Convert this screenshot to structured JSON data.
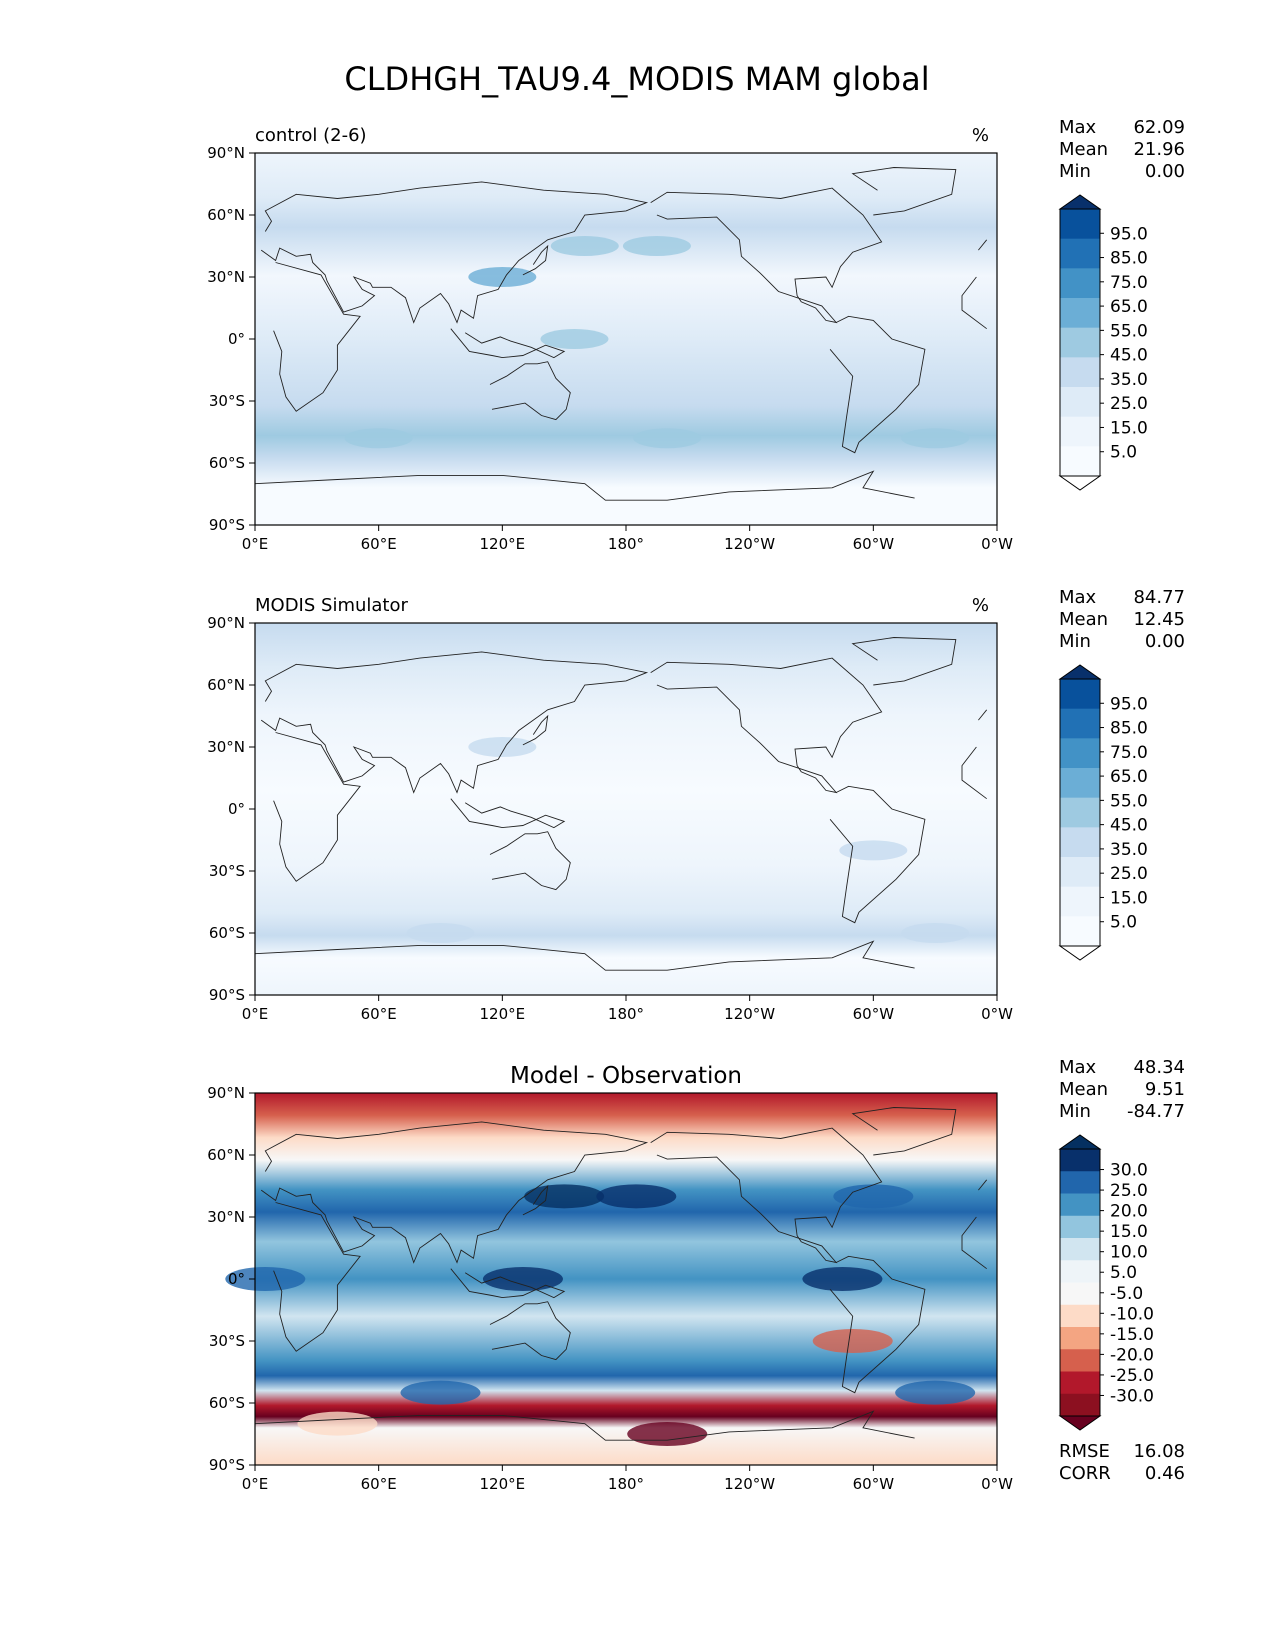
{
  "figure": {
    "title": "CLDHGH_TAU9.4_MODIS MAM global"
  },
  "axes": {
    "lat_ticks": [
      "90°N",
      "60°N",
      "30°N",
      "0°",
      "30°S",
      "60°S",
      "90°S"
    ],
    "lon_ticks": [
      "0°E",
      "60°E",
      "120°E",
      "180°",
      "120°W",
      "60°W",
      "0°W"
    ]
  },
  "panels": [
    {
      "id": "control",
      "title_left": "control (2-6)",
      "title_center": "",
      "units": "%",
      "stats": [
        {
          "label": "Max",
          "value": "62.09"
        },
        {
          "label": "Mean",
          "value": "21.96"
        },
        {
          "label": "Min",
          "value": "0.00"
        }
      ],
      "colorbar": {
        "labels": [
          "95.0",
          "85.0",
          "75.0",
          "65.0",
          "55.0",
          "45.0",
          "35.0",
          "25.0",
          "15.0",
          "5.0"
        ],
        "colors": [
          "#08306b",
          "#08519c",
          "#2171b5",
          "#4292c6",
          "#6baed6",
          "#9ecae1",
          "#c6dbef",
          "#deebf7",
          "#eef5fc",
          "#f7fbff",
          "#ffffff"
        ]
      }
    },
    {
      "id": "modis",
      "title_left": "MODIS Simulator",
      "title_center": "",
      "units": "%",
      "stats": [
        {
          "label": "Max",
          "value": "84.77"
        },
        {
          "label": "Mean",
          "value": "12.45"
        },
        {
          "label": "Min",
          "value": "0.00"
        }
      ],
      "colorbar": {
        "labels": [
          "95.0",
          "85.0",
          "75.0",
          "65.0",
          "55.0",
          "45.0",
          "35.0",
          "25.0",
          "15.0",
          "5.0"
        ],
        "colors": [
          "#08306b",
          "#08519c",
          "#2171b5",
          "#4292c6",
          "#6baed6",
          "#9ecae1",
          "#c6dbef",
          "#deebf7",
          "#eef5fc",
          "#f7fbff",
          "#ffffff"
        ]
      }
    },
    {
      "id": "diff",
      "title_left": "",
      "title_center": "Model - Observation",
      "units": "",
      "stats": [
        {
          "label": "Max",
          "value": "48.34"
        },
        {
          "label": "Mean",
          "value": "9.51"
        },
        {
          "label": "Min",
          "value": "-84.77"
        }
      ],
      "stats_bottom": [
        {
          "label": "RMSE",
          "value": "16.08"
        },
        {
          "label": "CORR",
          "value": "0.46"
        }
      ],
      "colorbar": {
        "labels": [
          "30.0",
          "25.0",
          "20.0",
          "15.0",
          "10.0",
          "5.0",
          "-5.0",
          "-10.0",
          "-15.0",
          "-20.0",
          "-25.0",
          "-30.0"
        ],
        "colors": [
          "#053061",
          "#08306b",
          "#2166ac",
          "#4393c3",
          "#92c5de",
          "#d1e5f0",
          "#eef4f8",
          "#f7f7f7",
          "#fddbc7",
          "#f4a582",
          "#d6604d",
          "#b2182b",
          "#8c1020",
          "#67001f"
        ]
      }
    }
  ]
}
